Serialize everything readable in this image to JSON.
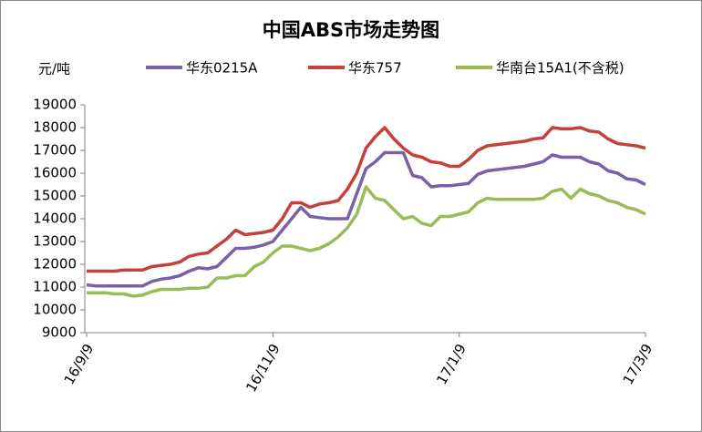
{
  "chart_data": {
    "type": "line",
    "title": "中国ABS市场走势图",
    "y_label": "元/吨",
    "categories": [
      "16/9/9",
      null,
      null,
      null,
      null,
      null,
      null,
      null,
      null,
      null,
      null,
      null,
      null,
      null,
      null,
      null,
      null,
      null,
      null,
      null,
      "16/11/9",
      null,
      null,
      null,
      null,
      null,
      null,
      null,
      null,
      null,
      null,
      null,
      null,
      null,
      null,
      null,
      null,
      null,
      null,
      null,
      "17/1/9",
      null,
      null,
      null,
      null,
      null,
      null,
      null,
      null,
      null,
      null,
      null,
      null,
      null,
      null,
      null,
      null,
      null,
      null,
      null,
      "17/3/9"
    ],
    "series": [
      {
        "name": "华东0215A",
        "color": "#7a60a8",
        "values": [
          11100,
          11050,
          11050,
          11050,
          11050,
          11050,
          11050,
          11250,
          11350,
          11400,
          11500,
          11700,
          11850,
          11800,
          11900,
          12300,
          12700,
          12700,
          12750,
          12850,
          13000,
          13500,
          14000,
          14500,
          14100,
          14050,
          14000,
          14000,
          14000,
          15100,
          16200,
          16500,
          16900,
          16900,
          16900,
          15900,
          15800,
          15400,
          15450,
          15450,
          15500,
          15550,
          15950,
          16100,
          16150,
          16200,
          16250,
          16300,
          16400,
          16500,
          16800,
          16700,
          16700,
          16700,
          16500,
          16400,
          16100,
          16000,
          15750,
          15700,
          15500
        ]
      },
      {
        "name": "华东757",
        "color": "#c63f3a",
        "values": [
          11700,
          11700,
          11700,
          11700,
          11750,
          11750,
          11750,
          11900,
          11950,
          12000,
          12100,
          12350,
          12450,
          12500,
          12800,
          13100,
          13500,
          13300,
          13350,
          13400,
          13500,
          14000,
          14700,
          14700,
          14500,
          14650,
          14700,
          14800,
          15300,
          16000,
          17100,
          17600,
          18000,
          17500,
          17100,
          16800,
          16700,
          16500,
          16450,
          16300,
          16300,
          16600,
          17000,
          17200,
          17250,
          17300,
          17350,
          17400,
          17500,
          17550,
          18000,
          17950,
          17950,
          18000,
          17850,
          17800,
          17500,
          17300,
          17250,
          17200,
          17100
        ]
      },
      {
        "name": "华南台15A1(不含税)",
        "color": "#9bbb59",
        "values": [
          10750,
          10750,
          10750,
          10700,
          10700,
          10600,
          10650,
          10800,
          10900,
          10900,
          10900,
          10950,
          10950,
          11000,
          11400,
          11400,
          11500,
          11500,
          11900,
          12100,
          12500,
          12800,
          12800,
          12700,
          12600,
          12700,
          12900,
          13200,
          13600,
          14200,
          15400,
          14900,
          14800,
          14400,
          14000,
          14100,
          13800,
          13700,
          14100,
          14100,
          14200,
          14300,
          14700,
          14900,
          14850,
          14850,
          14850,
          14850,
          14850,
          14900,
          15200,
          15300,
          14900,
          15300,
          15100,
          15000,
          14800,
          14700,
          14500,
          14400,
          14200
        ]
      }
    ],
    "ylim": [
      9000,
      19000
    ],
    "yticks": [
      9000,
      10000,
      11000,
      12000,
      13000,
      14000,
      15000,
      16000,
      17000,
      18000,
      19000
    ],
    "grid": false,
    "legend": "top"
  }
}
